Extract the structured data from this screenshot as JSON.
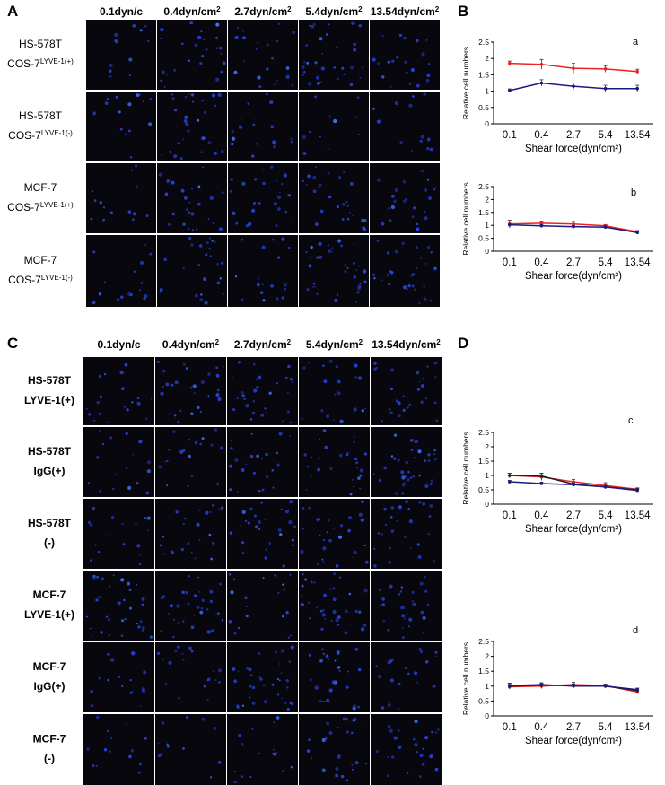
{
  "panel_labels": [
    "A",
    "B",
    "C",
    "D"
  ],
  "figure_A": {
    "columns": [
      {
        "text": "0.1dyn/c"
      },
      {
        "text": "0.4dyn/cm",
        "sup": "2"
      },
      {
        "text": "2.7dyn/cm",
        "sup": "2"
      },
      {
        "text": "5.4dyn/cm",
        "sup": "2"
      },
      {
        "text": "13.54dyn/cm",
        "sup": "2"
      }
    ],
    "rows": [
      {
        "line1": "HS-578T",
        "line2": "COS-7",
        "sup": "LYVE-1(+)"
      },
      {
        "line1": "HS-578T",
        "line2": "COS-7",
        "sup": "LYVE-1(-)"
      },
      {
        "line1": "MCF-7",
        "line2": "COS-7",
        "sup": "LYVE-1(+)"
      },
      {
        "line1": "MCF-7",
        "line2": "COS-7",
        "sup": "LYVE-1(-)"
      }
    ]
  },
  "figure_C": {
    "columns": [
      {
        "text": "0.1dyn/c"
      },
      {
        "text": "0.4dyn/cm",
        "sup": "2"
      },
      {
        "text": "2.7dyn/cm",
        "sup": "2"
      },
      {
        "text": "5.4dyn/cm",
        "sup": "2"
      },
      {
        "text": "13.54dyn/cm",
        "sup": "2"
      }
    ],
    "rows": [
      {
        "line1": "HS-578T",
        "line2": "LYVE-1(+)"
      },
      {
        "line1": "HS-578T",
        "line2": "IgG(+)"
      },
      {
        "line1": "HS-578T",
        "line2": "(-)"
      },
      {
        "line1": "MCF-7",
        "line2": "LYVE-1(+)"
      },
      {
        "line1": "MCF-7",
        "line2": "IgG(+)"
      },
      {
        "line1": "MCF-7",
        "line2": "(-)"
      }
    ]
  },
  "chart_data": [
    {
      "type": "line",
      "label": "a",
      "categories": [
        "0.1",
        "0.4",
        "2.7",
        "5.4",
        "13.54"
      ],
      "xlabel": "Shear force(dyn/cm²)",
      "ylabel": "Relative cell numbers",
      "ylim": [
        0,
        2.5
      ],
      "yticks": [
        0,
        0.5,
        1,
        1.5,
        2,
        2.5
      ],
      "series": [
        {
          "color": "#ee2222",
          "values": [
            1.85,
            1.82,
            1.7,
            1.68,
            1.6
          ],
          "errors": [
            0.07,
            0.15,
            0.15,
            0.1,
            0.07
          ]
        },
        {
          "color": "#1a1a80",
          "values": [
            1.02,
            1.25,
            1.15,
            1.08,
            1.08
          ],
          "errors": [
            0.05,
            0.1,
            0.1,
            0.1,
            0.1
          ]
        }
      ]
    },
    {
      "type": "line",
      "label": "b",
      "categories": [
        "0.1",
        "0.4",
        "2.7",
        "5.4",
        "13.54"
      ],
      "xlabel": "Shear force(dyn/cm²)",
      "ylabel": "Relative cell numbers",
      "ylim": [
        0,
        2.5
      ],
      "yticks": [
        0,
        0.5,
        1,
        1.5,
        2,
        2.5
      ],
      "series": [
        {
          "color": "#ee2222",
          "values": [
            1.05,
            1.08,
            1.05,
            0.98,
            0.75
          ],
          "errors": [
            0.15,
            0.08,
            0.1,
            0.05,
            0.05
          ]
        },
        {
          "color": "#1a1a80",
          "values": [
            1.02,
            0.98,
            0.95,
            0.93,
            0.72
          ],
          "errors": [
            0.1,
            0.05,
            0.05,
            0.05,
            0.05
          ]
        }
      ]
    },
    {
      "type": "line",
      "label": "c",
      "categories": [
        "0.1",
        "0.4",
        "2.7",
        "5.4",
        "13.54"
      ],
      "xlabel": "Shear force(dyn/cm²)",
      "ylabel": "Relative cell numbers",
      "ylim": [
        0,
        2.5
      ],
      "yticks": [
        0,
        0.5,
        1,
        1.5,
        2,
        2.5
      ],
      "series": [
        {
          "color": "#ee2222",
          "values": [
            1.0,
            0.95,
            0.78,
            0.65,
            0.52
          ],
          "errors": [
            0.08,
            0.12,
            0.08,
            0.1,
            0.05
          ]
        },
        {
          "color": "#202020",
          "values": [
            1.0,
            0.98,
            0.7,
            0.6,
            0.48
          ],
          "errors": [
            0.08,
            0.1,
            0.05,
            0.05,
            0.05
          ]
        },
        {
          "color": "#1a1a80",
          "values": [
            0.78,
            0.72,
            0.68,
            0.6,
            0.5
          ],
          "errors": [
            0.05,
            0.05,
            0.05,
            0.05,
            0.05
          ]
        }
      ]
    },
    {
      "type": "line",
      "label": "d",
      "categories": [
        "0.1",
        "0.4",
        "2.7",
        "5.4",
        "13.54"
      ],
      "xlabel": "Shear force(dyn/cm²)",
      "ylabel": "Relative cell numbers",
      "ylim": [
        0,
        2.5
      ],
      "yticks": [
        0,
        0.5,
        1,
        1.5,
        2,
        2.5
      ],
      "series": [
        {
          "color": "#ee2222",
          "values": [
            0.98,
            1.0,
            1.05,
            1.02,
            0.8
          ],
          "errors": [
            0.08,
            0.08,
            0.08,
            0.05,
            0.05
          ]
        },
        {
          "color": "#202020",
          "values": [
            1.0,
            1.03,
            1.02,
            1.0,
            0.85
          ],
          "errors": [
            0.1,
            0.08,
            0.06,
            0.05,
            0.08
          ]
        },
        {
          "color": "#1a1a80",
          "values": [
            1.02,
            1.05,
            1.0,
            1.0,
            0.88
          ],
          "errors": [
            0.08,
            0.06,
            0.05,
            0.05,
            0.05
          ]
        }
      ]
    }
  ]
}
